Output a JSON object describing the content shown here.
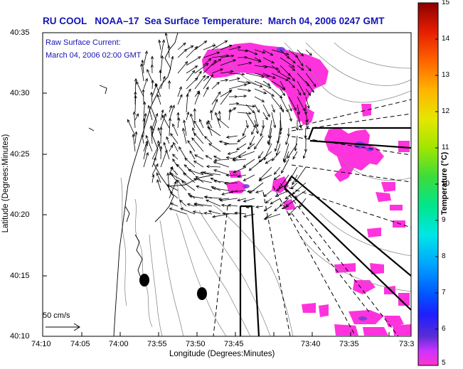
{
  "title": "RU COOL   NOAA–17  Sea Surface Temperature:  March 04, 2006 0247 GMT",
  "annotation": {
    "line1": "Raw Surface Current:",
    "line2": "March 04, 2006 02:00 GMT"
  },
  "scale_label": "50 cm/s",
  "axes": {
    "xlabel": "Longitude (Degrees:Minutes)",
    "ylabel": "Latitude (Degrees:Minutes)",
    "x_ticks": [
      "74:10",
      "74:05",
      "74:00",
      "73:55",
      "73:50",
      "73:45",
      "73:40",
      "73:35",
      "73:3"
    ],
    "y_ticks": [
      "40:35",
      "40:30",
      "40:25",
      "40:20",
      "40:15",
      "40:10"
    ]
  },
  "colorbar": {
    "label": "Temperature (°C)",
    "ticks": [
      "15",
      "14",
      "13",
      "12",
      "11",
      "10",
      "9",
      "8",
      "7",
      "6",
      "5"
    ],
    "min": 5,
    "max": 15
  }
}
